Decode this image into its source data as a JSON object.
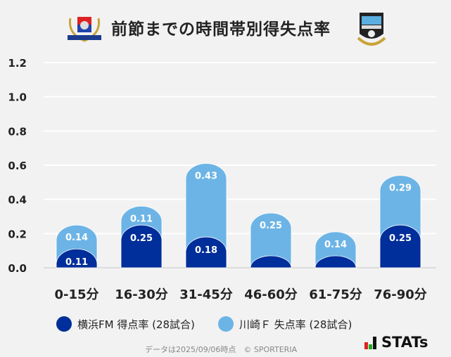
{
  "title": "前節までの時間帯別得失点率",
  "colors": {
    "home": "#002e9a",
    "away": "#6cb4e6",
    "background": "#f2f2f2",
    "grid": "#ffffff"
  },
  "chart_data": {
    "type": "bar",
    "stacked": true,
    "categories": [
      "0-15分",
      "16-30分",
      "31-45分",
      "46-60分",
      "61-75分",
      "76-90分"
    ],
    "series": [
      {
        "name": "横浜FM 得点率 (28試合)",
        "values": [
          0.11,
          0.25,
          0.18,
          0.07,
          0.07,
          0.25
        ],
        "labels": [
          "0.11",
          "0.25",
          "0.18",
          "",
          "",
          "0.25"
        ]
      },
      {
        "name": "川崎Ｆ 失点率 (28試合)",
        "values": [
          0.14,
          0.11,
          0.43,
          0.25,
          0.14,
          0.29
        ],
        "labels": [
          "0.14",
          "0.11",
          "0.43",
          "0.25",
          "0.14",
          "0.29"
        ]
      }
    ],
    "yticks": [
      "0.0",
      "0.2",
      "0.4",
      "0.6",
      "0.8",
      "1.0",
      "1.2"
    ],
    "ylim": [
      0,
      1.2
    ],
    "grid": true,
    "legend": "bottom"
  },
  "footer": {
    "note": "データは2025/09/06時点　© SPORTERIA",
    "brand": "STATs"
  }
}
